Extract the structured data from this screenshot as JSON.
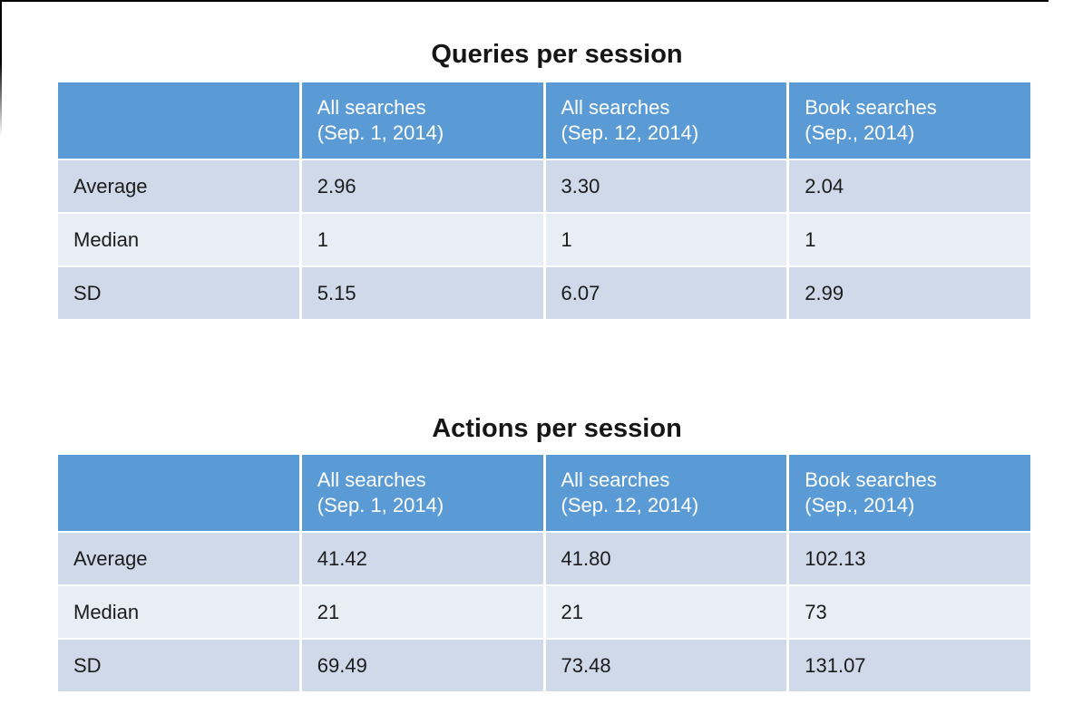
{
  "colors": {
    "page-bg": "#ffffff",
    "frame": "#000000",
    "header-bg": "#5b9bd5",
    "header-text": "#ffffff",
    "band-dark": "#cfd9ea",
    "band-light": "#e9edf6",
    "body-text": "#1c1c1c"
  },
  "tables": [
    {
      "title": "Queries per session",
      "columns": [
        "",
        "All searches\n(Sep. 1, 2014)",
        "All searches\n(Sep. 12, 2014)",
        "Book searches\n(Sep., 2014)"
      ],
      "rows": [
        {
          "label": "Average",
          "values": [
            "2.96",
            "3.30",
            "2.04"
          ]
        },
        {
          "label": "Median",
          "values": [
            "1",
            "1",
            "1"
          ]
        },
        {
          "label": "SD",
          "values": [
            "5.15",
            "6.07",
            "2.99"
          ]
        }
      ]
    },
    {
      "title": "Actions per session",
      "columns": [
        "",
        "All searches\n(Sep. 1, 2014)",
        "All searches\n(Sep. 12, 2014)",
        "Book searches\n(Sep., 2014)"
      ],
      "rows": [
        {
          "label": "Average",
          "values": [
            "41.42",
            "41.80",
            "102.13"
          ]
        },
        {
          "label": "Median",
          "values": [
            "21",
            "21",
            "73"
          ]
        },
        {
          "label": "SD",
          "values": [
            "69.49",
            "73.48",
            "131.07"
          ]
        }
      ]
    }
  ]
}
